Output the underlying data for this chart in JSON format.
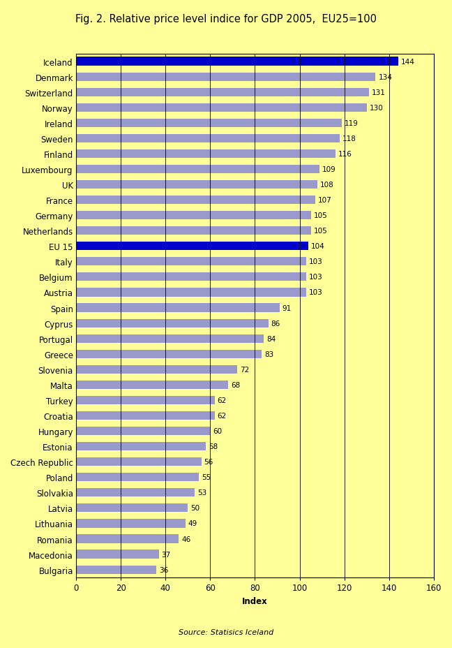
{
  "title": "Fig. 2. Relative price level indice for GDP 2005,  EU25=100",
  "xlabel": "Index",
  "source": "Source: Statisics Iceland",
  "xlim": [
    0,
    160
  ],
  "xticks": [
    0,
    20,
    40,
    60,
    80,
    100,
    120,
    140,
    160
  ],
  "background_color": "#FFFF99",
  "categories": [
    "Iceland",
    "Denmark",
    "Switzerland",
    "Norway",
    "Ireland",
    "Sweden",
    "Finland",
    "Luxembourg",
    "UK",
    "France",
    "Germany",
    "Netherlands",
    "EU 15",
    "Italy",
    "Belgium",
    "Austria",
    "Spain",
    "Cyprus",
    "Portugal",
    "Greece",
    "Slovenia",
    "Malta",
    "Turkey",
    "Croatia",
    "Hungary",
    "Estonia",
    "Czech Republic",
    "Poland",
    "Slolvakia",
    "Latvia",
    "Lithuania",
    "Romania",
    "Macedonia",
    "Bulgaria"
  ],
  "values": [
    144,
    134,
    131,
    130,
    119,
    118,
    116,
    109,
    108,
    107,
    105,
    105,
    104,
    103,
    103,
    103,
    91,
    86,
    84,
    83,
    72,
    68,
    62,
    62,
    60,
    58,
    56,
    55,
    53,
    50,
    49,
    46,
    37,
    36
  ],
  "bar_colors": [
    "#0000CC",
    "#9999CC",
    "#9999CC",
    "#9999CC",
    "#9999CC",
    "#9999CC",
    "#9999CC",
    "#9999CC",
    "#9999CC",
    "#9999CC",
    "#9999CC",
    "#9999CC",
    "#0000CC",
    "#9999CC",
    "#9999CC",
    "#9999CC",
    "#9999CC",
    "#9999CC",
    "#9999CC",
    "#9999CC",
    "#9999CC",
    "#9999CC",
    "#9999CC",
    "#9999CC",
    "#9999CC",
    "#9999CC",
    "#9999CC",
    "#9999CC",
    "#9999CC",
    "#9999CC",
    "#9999CC",
    "#9999CC",
    "#9999CC",
    "#9999CC"
  ],
  "title_fontsize": 10.5,
  "label_fontsize": 8.5,
  "tick_fontsize": 8.5,
  "value_fontsize": 7.5
}
